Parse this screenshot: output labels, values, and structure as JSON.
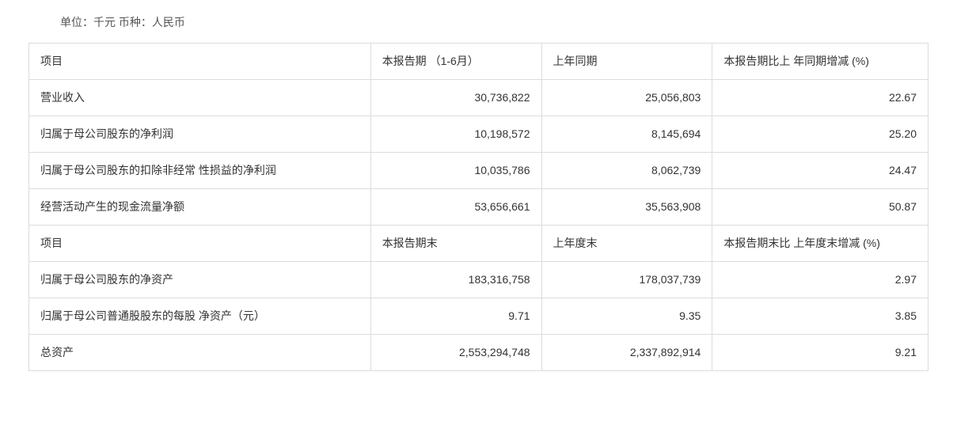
{
  "unit_line": "单位：千元 币种：人民币",
  "header1": {
    "c0": "项目",
    "c1": "本报告期 （1-6月）",
    "c2": "上年同期",
    "c3": "本报告期比上 年同期增减 (%)"
  },
  "rows1": [
    {
      "label": "营业收入",
      "v1": "30,736,822",
      "v2": "25,056,803",
      "v3": "22.67"
    },
    {
      "label": "归属于母公司股东的净利润",
      "v1": "10,198,572",
      "v2": "8,145,694",
      "v3": "25.20"
    },
    {
      "label": "归属于母公司股东的扣除非经常 性损益的净利润",
      "v1": "10,035,786",
      "v2": "8,062,739",
      "v3": "24.47"
    },
    {
      "label": "经营活动产生的现金流量净额",
      "v1": "53,656,661",
      "v2": "35,563,908",
      "v3": "50.87"
    }
  ],
  "header2": {
    "c0": "项目",
    "c1": "本报告期末",
    "c2": "上年度末",
    "c3": "本报告期末比 上年度末增减 (%)"
  },
  "rows2": [
    {
      "label": "归属于母公司股东的净资产",
      "v1": "183,316,758",
      "v2": "178,037,739",
      "v3": "2.97"
    },
    {
      "label": "归属于母公司普通股股东的每股 净资产（元）",
      "v1": "9.71",
      "v2": "9.35",
      "v3": "3.85"
    },
    {
      "label": "总资产",
      "v1": "2,553,294,748",
      "v2": "2,337,892,914",
      "v3": "9.21"
    }
  ],
  "colors": {
    "border": "#dcdcdc",
    "text": "#333333",
    "background": "#ffffff"
  },
  "typography": {
    "font_family": "Microsoft YaHei / PingFang SC",
    "font_size_pt": 10.5
  },
  "table": {
    "type": "table",
    "column_widths_pct": [
      38,
      19,
      19,
      24
    ],
    "alignments": [
      "left",
      "right",
      "right",
      "right"
    ]
  }
}
